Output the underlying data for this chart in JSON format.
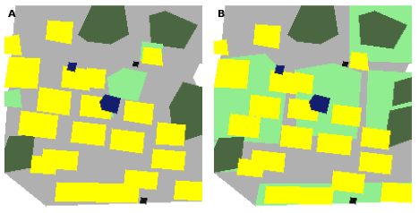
{
  "figsize": [
    4.68,
    2.38
  ],
  "dpi": 100,
  "colors": {
    "white": [
      255,
      255,
      255
    ],
    "gray": [
      176,
      176,
      176
    ],
    "yellow": [
      255,
      255,
      0
    ],
    "light_green": [
      144,
      238,
      144
    ],
    "dark_green": [
      74,
      103,
      65
    ],
    "navy": [
      20,
      30,
      110
    ],
    "black": [
      20,
      20,
      20
    ]
  },
  "panel_A_label": "A",
  "panel_B_label": "B"
}
